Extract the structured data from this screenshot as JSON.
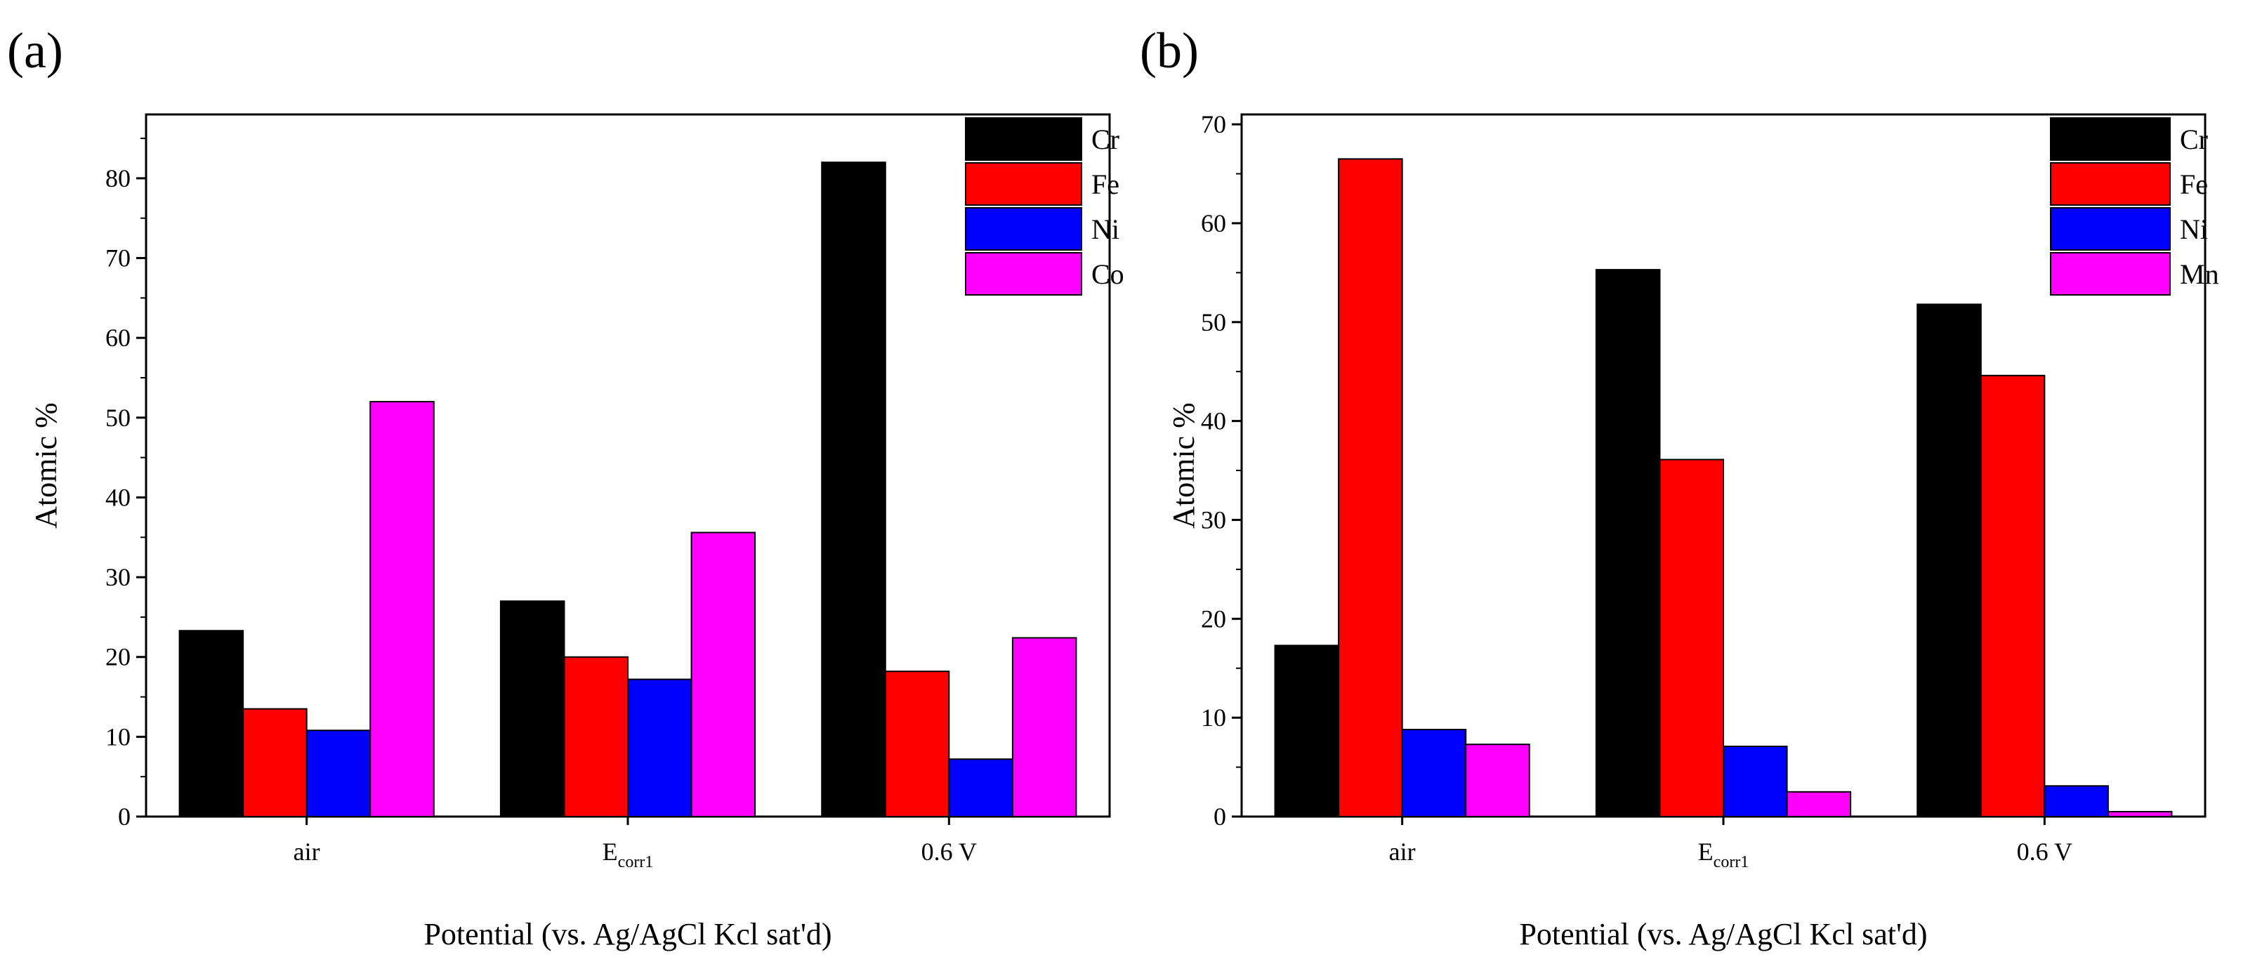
{
  "colors": {
    "Cr": "#000000",
    "Fe": "#ff0000",
    "Ni": "#0000ff",
    "Co": "#ff00ff",
    "Mn": "#ff00ff",
    "axis": "#000000",
    "background": "#ffffff"
  },
  "chart_data": [
    {
      "panel_label": "(a)",
      "type": "bar",
      "categories": [
        {
          "main": "air",
          "sub": ""
        },
        {
          "main": "E",
          "sub": "corr1"
        },
        {
          "main": "0.6 V",
          "sub": ""
        }
      ],
      "series": [
        {
          "name": "Cr",
          "values": [
            23.3,
            27.0,
            82.0
          ]
        },
        {
          "name": "Fe",
          "values": [
            13.5,
            20.0,
            18.2
          ]
        },
        {
          "name": "Ni",
          "values": [
            10.8,
            17.2,
            7.2
          ]
        },
        {
          "name": "Co",
          "values": [
            52.0,
            35.6,
            22.4
          ]
        }
      ],
      "xlabel": "Potential (vs. Ag/AgCl Kcl sat'd)",
      "ylabel": "Atomic %",
      "ylim": [
        0,
        88
      ],
      "yticks": [
        0,
        10,
        20,
        30,
        40,
        50,
        60,
        70,
        80
      ],
      "legend_position": "top-right",
      "grid": false
    },
    {
      "panel_label": "(b)",
      "type": "bar",
      "categories": [
        {
          "main": "air",
          "sub": ""
        },
        {
          "main": "E",
          "sub": "corr1"
        },
        {
          "main": "0.6 V",
          "sub": ""
        }
      ],
      "series": [
        {
          "name": "Cr",
          "values": [
            17.3,
            55.3,
            51.8
          ]
        },
        {
          "name": "Fe",
          "values": [
            66.5,
            36.1,
            44.6
          ]
        },
        {
          "name": "Ni",
          "values": [
            8.8,
            7.1,
            3.1
          ]
        },
        {
          "name": "Mn",
          "values": [
            7.3,
            2.5,
            0.5
          ]
        }
      ],
      "xlabel": "Potential (vs. Ag/AgCl Kcl sat'd)",
      "ylabel": "Atomic %",
      "ylim": [
        0,
        71
      ],
      "yticks": [
        0,
        10,
        20,
        30,
        40,
        50,
        60,
        70
      ],
      "legend_position": "top-right",
      "grid": false
    }
  ]
}
